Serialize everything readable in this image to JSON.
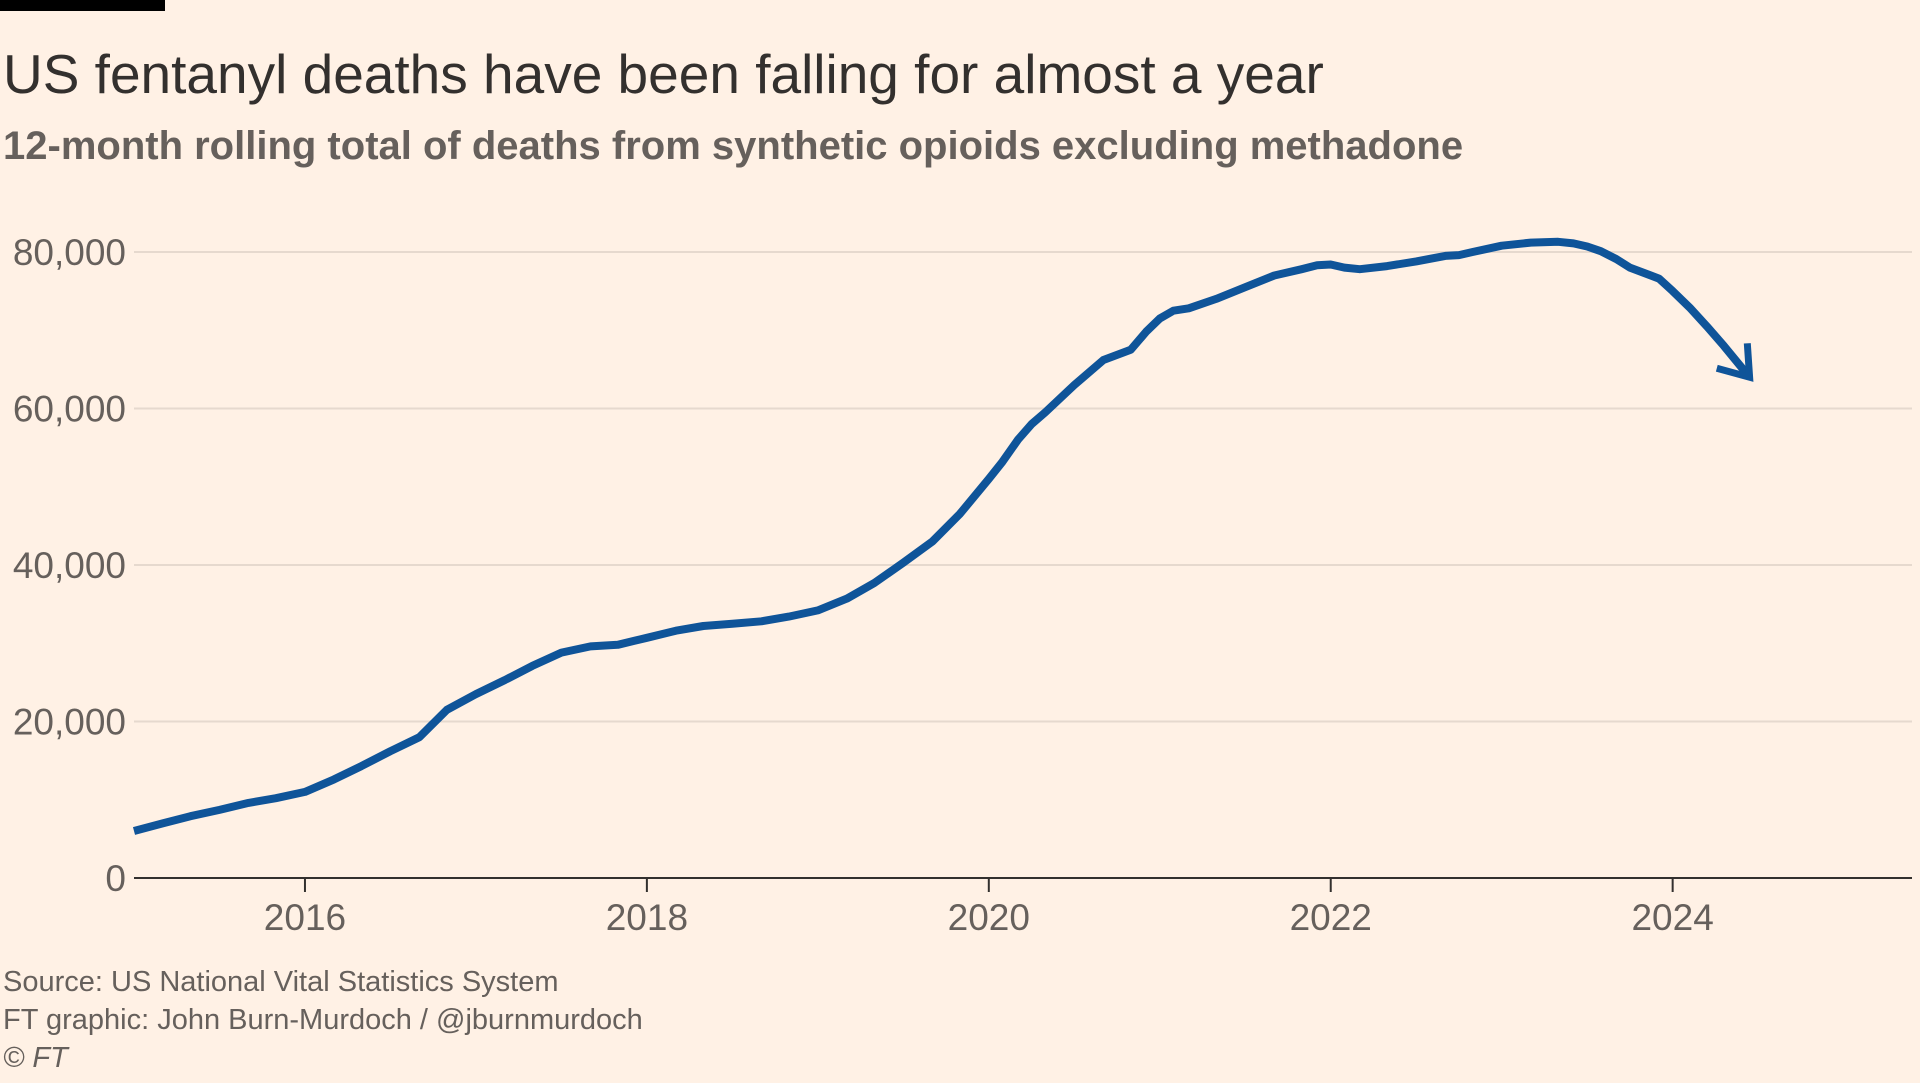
{
  "header": {
    "title": "US fentanyl deaths have been falling for almost a year",
    "subtitle": "12-month rolling total of deaths from synthetic opioids excluding methadone"
  },
  "footer": {
    "source": "Source: US National Vital Statistics System",
    "credit": "FT graphic: John Burn-Murdoch / @jburnmurdoch",
    "copyright": "© FT"
  },
  "colors": {
    "background": "#FFF1E5",
    "line": "#0F5499",
    "grid": "#E6D9CE",
    "axis": "#33302E"
  },
  "chart_data": {
    "type": "line",
    "title": "US fentanyl deaths have been falling for almost a year",
    "subtitle": "12-month rolling total of deaths from synthetic opioids excluding methadone",
    "xlabel": "",
    "ylabel": "",
    "xlim": [
      2015.0,
      2025.4
    ],
    "ylim": [
      0,
      80000
    ],
    "yticks": [
      0,
      20000,
      40000,
      60000,
      80000
    ],
    "ytick_labels": [
      "0",
      "20,000",
      "40,000",
      "60,000",
      "80,000"
    ],
    "xticks": [
      2016,
      2018,
      2020,
      2022,
      2024
    ],
    "xtick_labels": [
      "2016",
      "2018",
      "2020",
      "2022",
      "2024"
    ],
    "grid": true,
    "end_marker": "arrow",
    "series": [
      {
        "x": [
          2015.0,
          2015.17,
          2015.33,
          2015.5,
          2015.67,
          2015.83,
          2016.0,
          2016.17,
          2016.33,
          2016.5,
          2016.67,
          2016.83,
          2017.0,
          2017.17,
          2017.33,
          2017.5,
          2017.67,
          2017.83,
          2018.0,
          2018.17,
          2018.33,
          2018.5,
          2018.67,
          2018.83,
          2019.0,
          2019.17,
          2019.33,
          2019.5,
          2019.67,
          2019.83,
          2020.0,
          2020.08,
          2020.17,
          2020.25,
          2020.33,
          2020.5,
          2020.67,
          2020.83,
          2020.92,
          2021.0,
          2021.08,
          2021.17,
          2021.33,
          2021.5,
          2021.67,
          2021.83,
          2021.92,
          2022.0,
          2022.08,
          2022.17,
          2022.33,
          2022.5,
          2022.67,
          2022.75,
          2022.83,
          2023.0,
          2023.17,
          2023.33,
          2023.42,
          2023.5,
          2023.58,
          2023.67,
          2023.75,
          2023.92,
          2024.0,
          2024.1,
          2024.2,
          2024.3,
          2024.45
        ],
        "values": [
          6000,
          7000,
          7900,
          8700,
          9600,
          10200,
          11000,
          12600,
          14300,
          16200,
          18000,
          21500,
          23500,
          25300,
          27100,
          28800,
          29600,
          29800,
          30700,
          31600,
          32200,
          32500,
          32800,
          33400,
          34200,
          35700,
          37700,
          40300,
          43000,
          46500,
          51000,
          53200,
          56000,
          58000,
          59500,
          63000,
          66200,
          67500,
          69800,
          71500,
          72500,
          72800,
          74000,
          75500,
          77000,
          77800,
          78300,
          78400,
          78000,
          77800,
          78200,
          78800,
          79500,
          79600,
          80000,
          80800,
          81200,
          81300,
          81100,
          80700,
          80100,
          79100,
          78000,
          76600,
          75000,
          72900,
          70500,
          68000,
          64000
        ]
      }
    ]
  }
}
